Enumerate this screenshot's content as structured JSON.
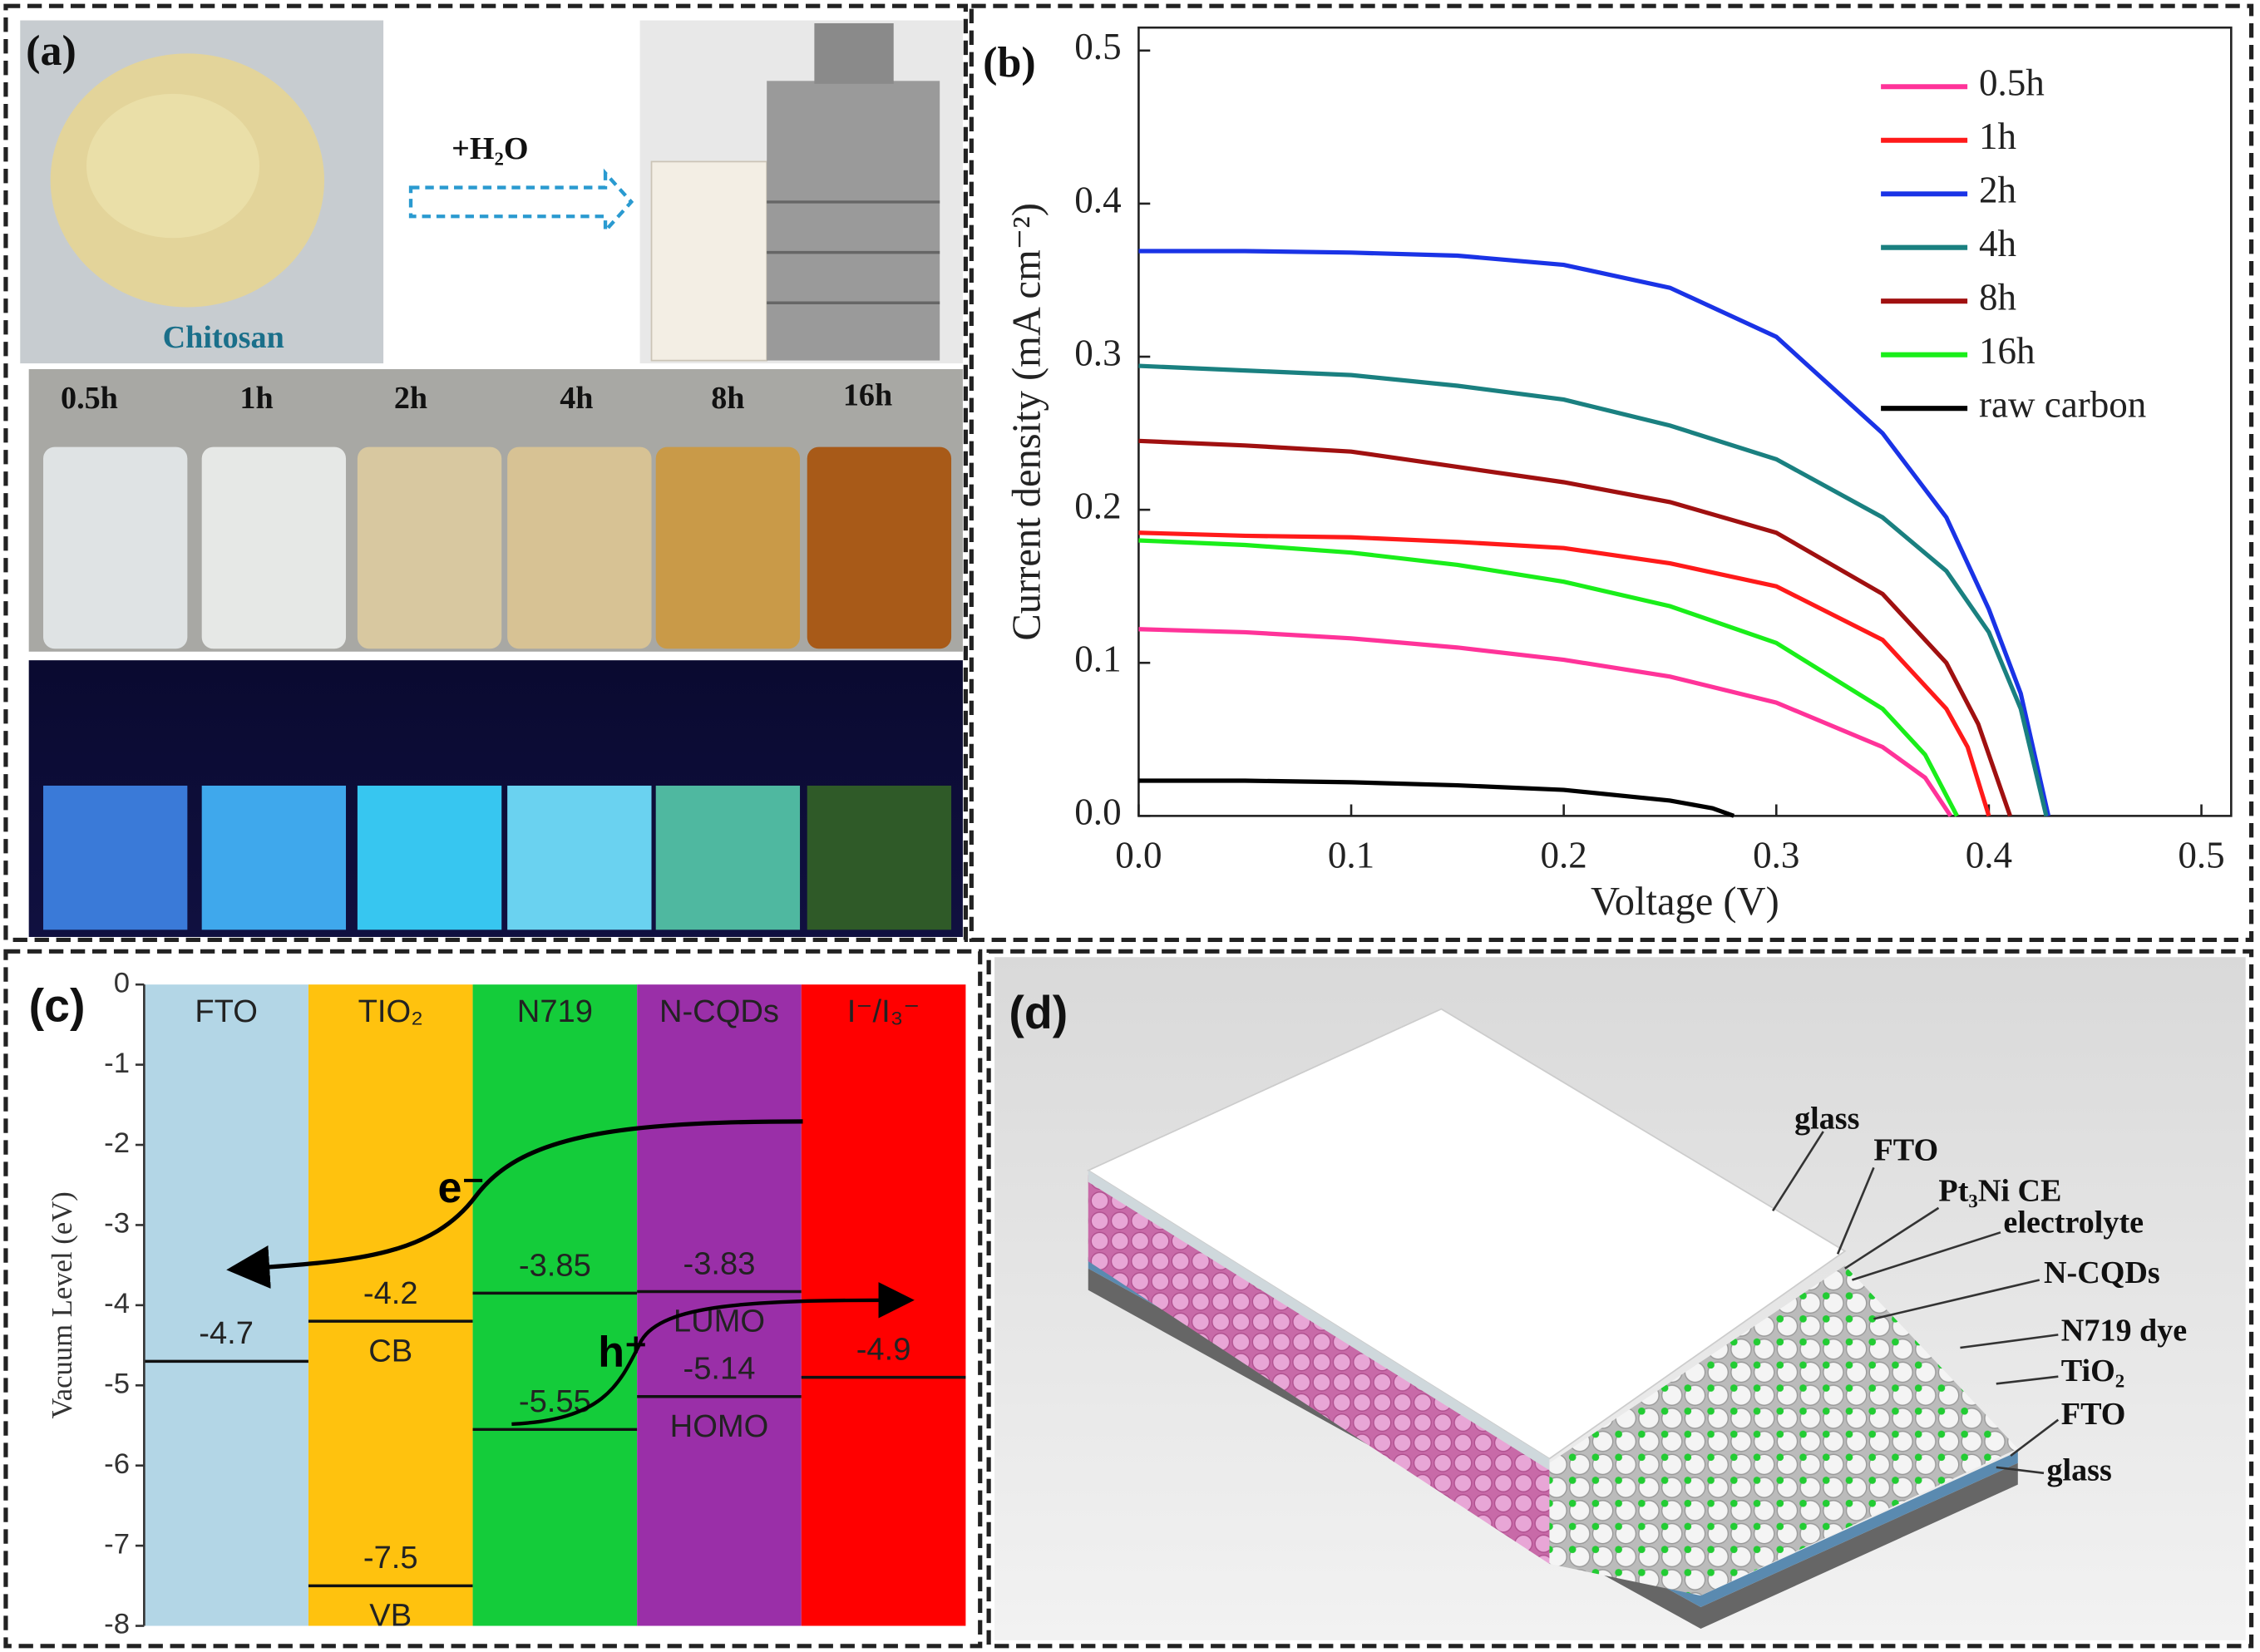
{
  "panel_a": {
    "label": "(a)",
    "arrow_label": "+H₂O",
    "powder_label": "Chitosan",
    "vial_labels": [
      "0.5h",
      "1h",
      "2h",
      "4h",
      "8h",
      "16h"
    ]
  },
  "chart_data": [
    {
      "type": "line",
      "label": "(b)",
      "x_label": "Voltage (V)",
      "y_label": "Current density (mA cm⁻²)",
      "xlim": [
        0,
        0.514
      ],
      "ylim": [
        0,
        0.515
      ],
      "xticks": [
        {
          "value": 0,
          "label": "0.0"
        },
        {
          "value": 0.1,
          "label": "0.1"
        },
        {
          "value": 0.2,
          "label": "0.2"
        },
        {
          "value": 0.3,
          "label": "0.3"
        },
        {
          "value": 0.4,
          "label": "0.4"
        },
        {
          "value": 0.5,
          "label": "0.5"
        }
      ],
      "yticks": [
        {
          "value": 0,
          "label": "0.0"
        },
        {
          "value": 0.1,
          "label": "0.1"
        },
        {
          "value": 0.2,
          "label": "0.2"
        },
        {
          "value": 0.3,
          "label": "0.3"
        },
        {
          "value": 0.4,
          "label": "0.4"
        },
        {
          "value": 0.5,
          "label": "0.5"
        }
      ],
      "legend": "upper right",
      "series": [
        {
          "name": "0.5h",
          "color": "#ff3399",
          "x": [
            0,
            0.05,
            0.1,
            0.15,
            0.2,
            0.25,
            0.3,
            0.35,
            0.37,
            0.382
          ],
          "values": [
            0.122,
            0.12,
            0.116,
            0.11,
            0.102,
            0.091,
            0.074,
            0.045,
            0.025,
            0
          ]
        },
        {
          "name": "1h",
          "color": "#ff1a1a",
          "x": [
            0,
            0.05,
            0.1,
            0.15,
            0.2,
            0.25,
            0.3,
            0.35,
            0.38,
            0.39,
            0.4
          ],
          "values": [
            0.185,
            0.183,
            0.182,
            0.179,
            0.175,
            0.165,
            0.15,
            0.115,
            0.07,
            0.045,
            0
          ]
        },
        {
          "name": "2h",
          "color": "#1a33e6",
          "x": [
            0,
            0.05,
            0.1,
            0.15,
            0.2,
            0.25,
            0.3,
            0.35,
            0.38,
            0.4,
            0.415,
            0.428
          ],
          "values": [
            0.369,
            0.369,
            0.368,
            0.366,
            0.36,
            0.345,
            0.313,
            0.25,
            0.195,
            0.135,
            0.08,
            0
          ]
        },
        {
          "name": "4h",
          "color": "#1a8080",
          "x": [
            0,
            0.05,
            0.1,
            0.15,
            0.2,
            0.25,
            0.3,
            0.35,
            0.38,
            0.4,
            0.415,
            0.427
          ],
          "values": [
            0.294,
            0.291,
            0.288,
            0.281,
            0.272,
            0.255,
            0.233,
            0.195,
            0.16,
            0.12,
            0.07,
            0
          ]
        },
        {
          "name": "8h",
          "color": "#a01010",
          "x": [
            0,
            0.05,
            0.1,
            0.15,
            0.2,
            0.25,
            0.3,
            0.35,
            0.38,
            0.395,
            0.41
          ],
          "values": [
            0.245,
            0.242,
            0.238,
            0.228,
            0.218,
            0.205,
            0.185,
            0.145,
            0.1,
            0.06,
            0
          ]
        },
        {
          "name": "16h",
          "color": "#1aee1a",
          "x": [
            0,
            0.05,
            0.1,
            0.15,
            0.2,
            0.25,
            0.3,
            0.35,
            0.37,
            0.385
          ],
          "values": [
            0.18,
            0.177,
            0.172,
            0.164,
            0.153,
            0.137,
            0.113,
            0.07,
            0.04,
            0
          ]
        },
        {
          "name": "raw carbon",
          "color": "#000000",
          "x": [
            0,
            0.05,
            0.1,
            0.15,
            0.2,
            0.25,
            0.27,
            0.28
          ],
          "values": [
            0.023,
            0.023,
            0.022,
            0.02,
            0.017,
            0.01,
            0.005,
            0
          ]
        }
      ]
    },
    {
      "type": "energy_levels",
      "label": "(c)",
      "y_label": "Vacuum Level (eV)",
      "ylim": [
        -8,
        0
      ],
      "yticks": [
        0,
        -1,
        -2,
        -3,
        -4,
        -5,
        -6,
        -7,
        -8
      ],
      "annotations": [
        "e⁻",
        "h⁺"
      ],
      "columns": [
        {
          "name": "FTO",
          "color": "#b3d6e6",
          "levels": [
            -4.7
          ]
        },
        {
          "name": "TIO₂",
          "color": "#ffc20e",
          "levels": [
            -4.2,
            -7.5
          ],
          "level_names": [
            "CB",
            "VB"
          ]
        },
        {
          "name": "N719",
          "color": "#14cc3a",
          "levels": [
            -3.85,
            -5.55
          ]
        },
        {
          "name": "N-CQDs",
          "color": "#9a2fa8",
          "levels": [
            -3.83,
            -5.14
          ],
          "level_names": [
            "LUMO",
            "HOMO"
          ]
        },
        {
          "name": "I⁻/I₃⁻",
          "color": "#ff0000",
          "levels": [
            -4.9
          ]
        }
      ]
    }
  ],
  "panel_d": {
    "label": "(d)",
    "layer_labels": [
      "glass",
      "FTO",
      "Pt₃Ni CE",
      "electrolyte",
      "N-CQDs",
      "N719 dye",
      "TiO₂",
      "FTO",
      "glass"
    ]
  }
}
